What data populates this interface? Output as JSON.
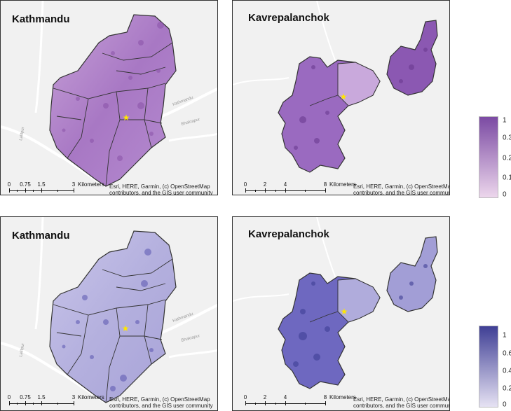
{
  "panels": {
    "top_left": {
      "title": "Kathmandu",
      "scale_ticks": [
        "0",
        "0.75",
        "1.5",
        "3"
      ],
      "scale_unit": "Kilometers",
      "attribution": [
        "Esri, HERE, Garmin, (c) OpenStreetMap",
        "contributors, and the GIS user community"
      ],
      "road_labels": [
        "Kathmandu",
        "Bhaktapur",
        "Lalitpur"
      ]
    },
    "top_right": {
      "title": "Kavrepalanchok",
      "scale_ticks": [
        "0",
        "2",
        "4",
        "8"
      ],
      "scale_unit": "Kilometers",
      "attribution": [
        "Esri, HERE, Garmin, (c) OpenStreetMap",
        "contributors, and the GIS user community"
      ]
    },
    "bottom_left": {
      "title": "Kathmandu",
      "scale_ticks": [
        "0",
        "0.75",
        "1.5",
        "3"
      ],
      "scale_unit": "Kilometers",
      "attribution": [
        "Esri, HERE, Garmin, (c) OpenStreetMap",
        "contributors, and the GIS user community"
      ],
      "road_labels": [
        "Kathmandu",
        "Bhaktapur",
        "Lalitpur"
      ]
    },
    "bottom_right": {
      "title": "Kavrepalanchok",
      "scale_ticks": [
        "0",
        "2",
        "4",
        "8"
      ],
      "scale_unit": "Kilometers",
      "attribution": [
        "Esri, HERE, Garmin, (c) OpenStreetMap",
        "contributors, and the GIS user community"
      ]
    }
  },
  "legends": {
    "top": {
      "labels": [
        "1",
        "0.3",
        "0.2",
        "0.1",
        "0"
      ],
      "color_high": "#7b4aa3",
      "color_low": "#ecd6ec"
    },
    "bottom": {
      "labels": [
        "1",
        "0.6",
        "0.4",
        "0.2",
        "0"
      ],
      "color_high": "#3f3f95",
      "color_low": "#e6e2f3"
    }
  },
  "colors": {
    "top_fill_mid": "#a878c4",
    "bottom_fill_mid": "#b4b0de",
    "marker": "#ffe600",
    "basemap": "#f1f1f1",
    "boundary": "#333333"
  }
}
